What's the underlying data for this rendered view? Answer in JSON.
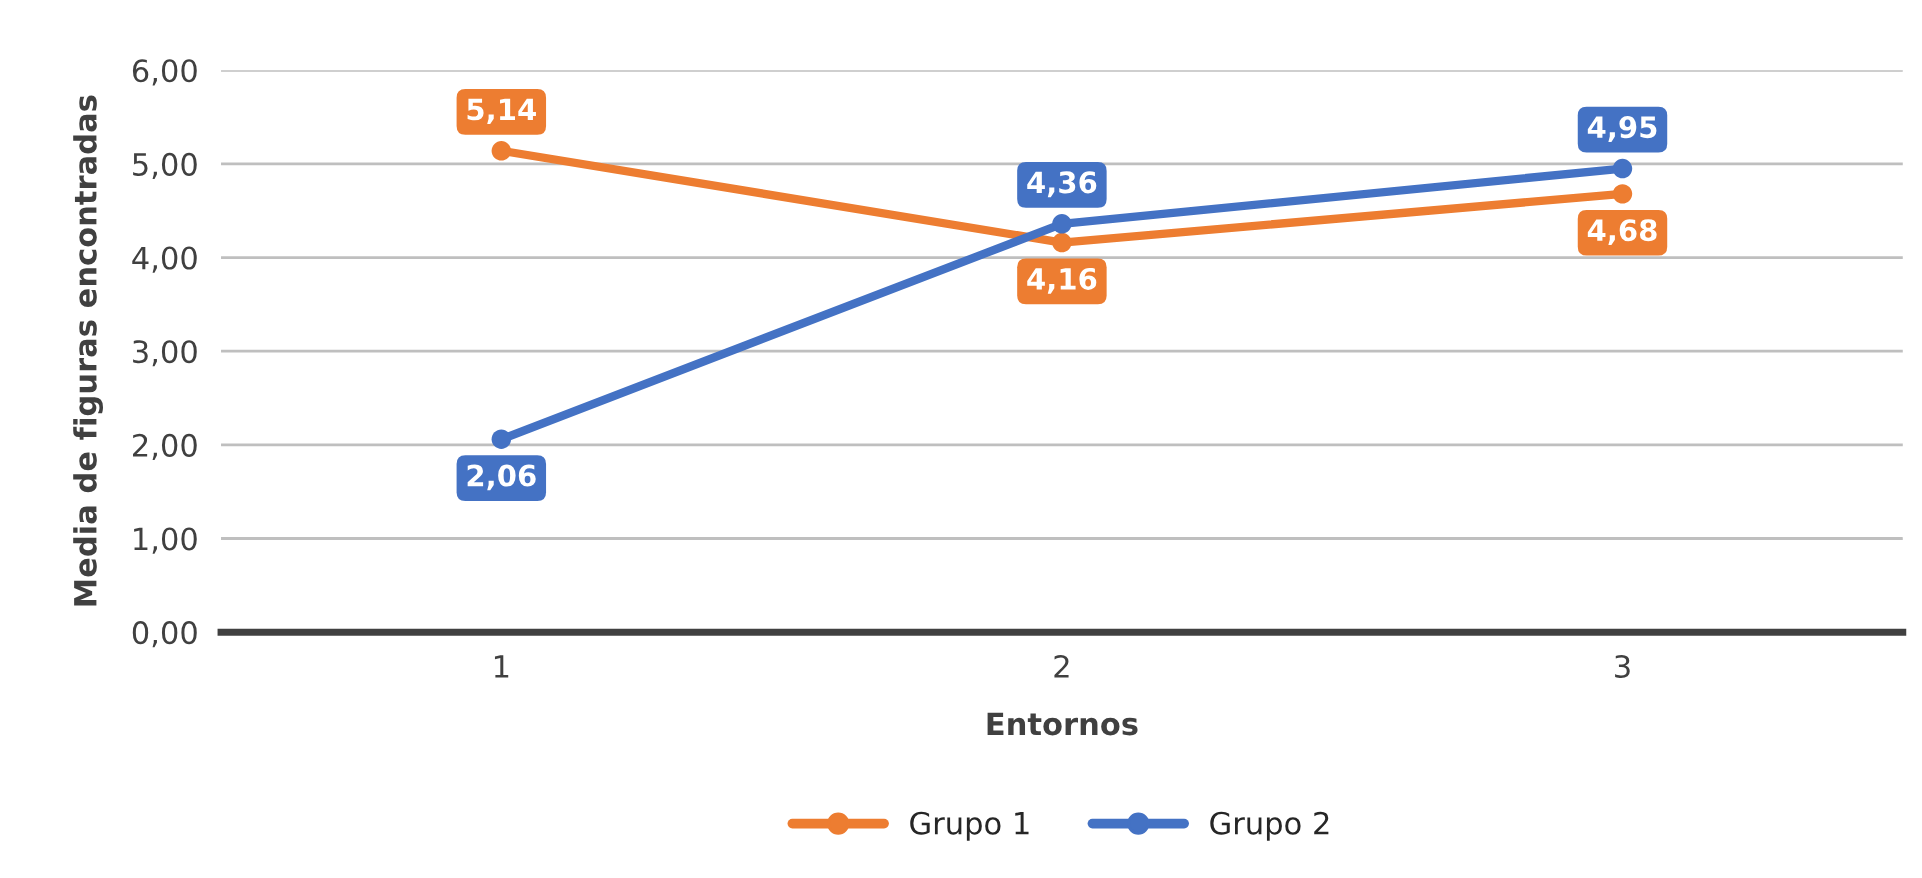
{
  "chart_data": {
    "type": "line",
    "xlabel": "Entornos",
    "ylabel": "Media de figuras encontradas",
    "categories": [
      "1",
      "2",
      "3"
    ],
    "series": [
      {
        "name": "Grupo 1",
        "color": "#ed7d31",
        "values": [
          5.14,
          4.16,
          4.68
        ],
        "value_labels": [
          "5,14",
          "4,16",
          "4,68"
        ]
      },
      {
        "name": "Grupo 2",
        "color": "#4472c4",
        "values": [
          2.06,
          4.36,
          4.95
        ],
        "value_labels": [
          "2,06",
          "4,36",
          "4,95"
        ]
      }
    ],
    "ylim": [
      0,
      6
    ],
    "yticks": [
      {
        "value": 0,
        "label": "0,00"
      },
      {
        "value": 1,
        "label": "1,00"
      },
      {
        "value": 2,
        "label": "2,00"
      },
      {
        "value": 3,
        "label": "3,00"
      },
      {
        "value": 4,
        "label": "4,00"
      },
      {
        "value": 5,
        "label": "5,00"
      },
      {
        "value": 6,
        "label": "6,00"
      }
    ],
    "grid": "y",
    "legend": "bottom",
    "marker": "circle",
    "line_style": "solid"
  }
}
